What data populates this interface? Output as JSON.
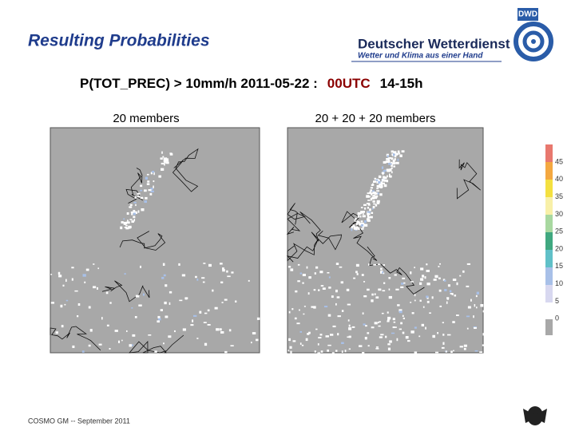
{
  "header": {
    "title": "Resulting Probabilities",
    "logo": {
      "abbrev": "DWD",
      "name": "Deutscher Wetterdienst",
      "slogan": "Wetter und Klima aus einer Hand"
    }
  },
  "heading": {
    "prefix": "P(TOT_PREC) > 10mm/h 2011-05-22 :",
    "run": "00UTC",
    "period": "14-15h"
  },
  "panels": [
    {
      "label": "20 members"
    },
    {
      "label": "20 + 20 + 20 members"
    }
  ],
  "colorbar": {
    "labels": [
      "45",
      "40",
      "35",
      "30",
      "25",
      "20",
      "15",
      "10",
      "5",
      "0"
    ]
  },
  "footer": "COSMO GM -- September 2011"
}
